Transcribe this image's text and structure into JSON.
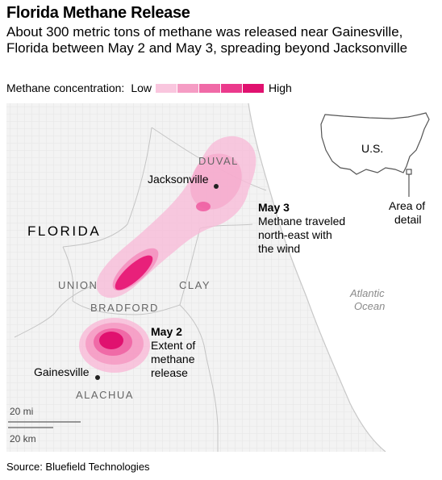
{
  "header": {
    "title": "Florida Methane Release",
    "subtitle": "About 300 metric tons of methane was released near Gainesville, Florida between May 2 and May 3, spreading beyond Jacksonville"
  },
  "legend": {
    "label": "Methane concentration:",
    "low": "Low",
    "high": "High",
    "colors": [
      "#f9c6de",
      "#f59cc4",
      "#f06aa7",
      "#eb3a8c",
      "#e0116f"
    ]
  },
  "map": {
    "state_label": "FLORIDA",
    "counties": [
      "DUVAL",
      "UNION",
      "CLAY",
      "BRADFORD",
      "ALACHUA"
    ],
    "cities": [
      "Jacksonville",
      "Gainesville"
    ],
    "water_label_line1": "Atlantic",
    "water_label_line2": "Ocean",
    "annotations": {
      "may3_title": "May 3",
      "may3_line1": "Methane traveled",
      "may3_line2": "north-east with",
      "may3_line3": "the wind",
      "may2_title": "May 2",
      "may2_line1": "Extent of",
      "may2_line2": "methane",
      "may2_line3": "release"
    },
    "inset": {
      "label": "U.S.",
      "area_line1": "Area of",
      "area_line2": "detail"
    },
    "scale": {
      "miles": "20 mi",
      "km": "20 km"
    }
  },
  "footer": {
    "source": "Source: Bluefield Technologies"
  }
}
